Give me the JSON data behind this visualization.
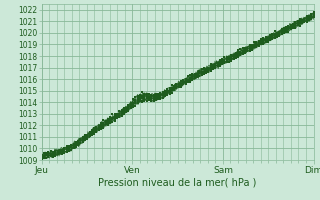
{
  "title": "Pression niveau de la mer( hPa )",
  "ylim": [
    1009,
    1022.5
  ],
  "yticks": [
    1009,
    1010,
    1011,
    1012,
    1013,
    1014,
    1015,
    1016,
    1017,
    1018,
    1019,
    1020,
    1021,
    1022
  ],
  "day_labels": [
    "Jeu",
    "Ven",
    "Sam",
    "Dim"
  ],
  "day_positions": [
    0,
    96,
    192,
    288
  ],
  "xlim": [
    0,
    288
  ],
  "background_color": "#cce8d8",
  "grid_color": "#88b898",
  "line_color": "#1e5c1e",
  "tick_label_color": "#1e5c1e",
  "title_color": "#1e5c1e",
  "total_hours": 288
}
